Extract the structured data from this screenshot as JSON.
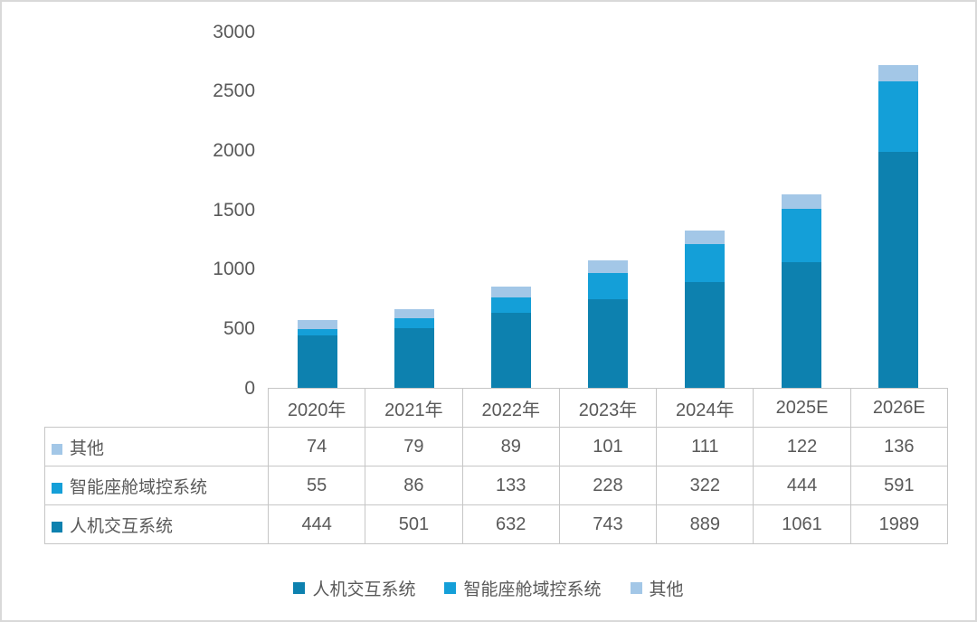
{
  "chart_data": {
    "type": "bar",
    "stacked": true,
    "title": "",
    "xlabel": "",
    "ylabel": "",
    "categories": [
      "2020年",
      "2021年",
      "2022年",
      "2023年",
      "2024年",
      "2025E",
      "2026E"
    ],
    "series": [
      {
        "name": "人机交互系统",
        "color": "#0D81AF",
        "values": [
          444,
          501,
          632,
          743,
          889,
          1061,
          1989
        ]
      },
      {
        "name": "智能座舱域控系统",
        "color": "#149FD8",
        "values": [
          55,
          86,
          133,
          228,
          322,
          444,
          591
        ]
      },
      {
        "name": "其他",
        "color": "#A3C7E7",
        "values": [
          74,
          79,
          89,
          101,
          111,
          122,
          136
        ]
      }
    ],
    "ylim": [
      0,
      3000
    ],
    "yticks": [
      0,
      500,
      1000,
      1500,
      2000,
      2500,
      3000
    ],
    "grid": false,
    "legend_position": "bottom",
    "legend_order": [
      "人机交互系统",
      "智能座舱域控系统",
      "其他"
    ],
    "table_row_order": [
      "其他",
      "智能座舱域控系统",
      "人机交互系统"
    ],
    "colors": {
      "border": "#C6C6C6",
      "frame_border": "#D9D9D9",
      "text": "#595959"
    }
  }
}
